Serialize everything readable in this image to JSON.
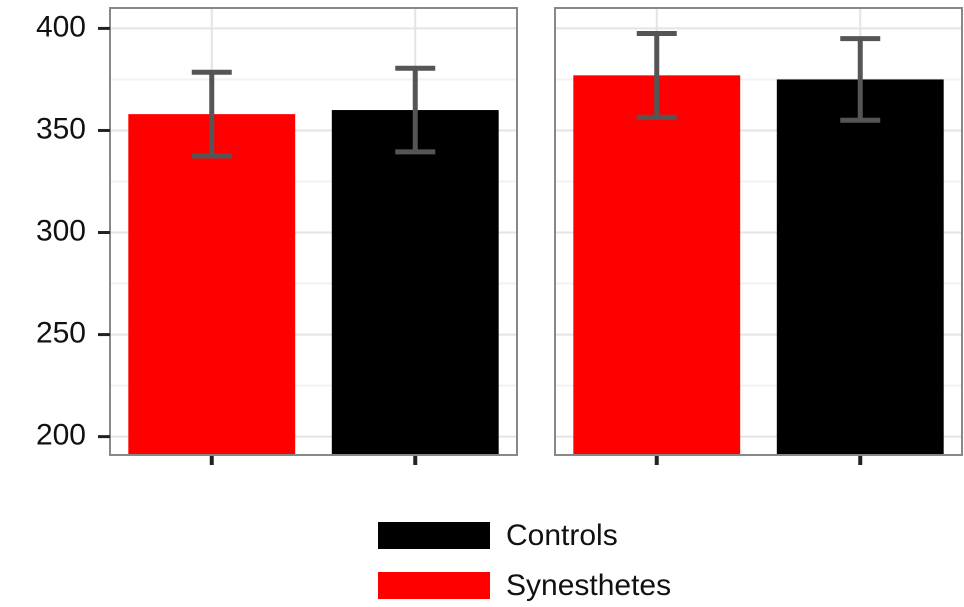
{
  "chart_data": {
    "type": "bar",
    "categories": [
      null,
      null
    ],
    "series": [
      {
        "name": "Synesthetes",
        "color": "#ff0000",
        "values": [
          358,
          377
        ],
        "errors": [
          20.5,
          20.5
        ]
      },
      {
        "name": "Controls",
        "color": "#000000",
        "values": [
          360,
          375
        ],
        "errors": [
          20.5,
          20
        ]
      }
    ],
    "ylim": [
      191,
      410
    ],
    "yticks": [
      200,
      250,
      300,
      350,
      400
    ],
    "minor_yticks": [
      225,
      275,
      325,
      375
    ],
    "grid": true,
    "legend": "bottom"
  }
}
